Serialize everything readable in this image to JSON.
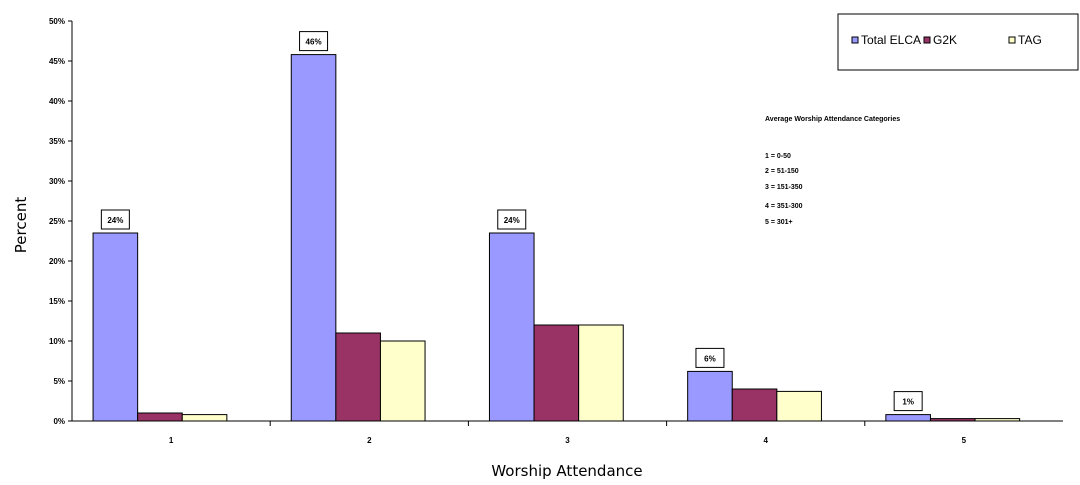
{
  "chart_data": {
    "type": "bar",
    "xlabel": "Worship Attendance",
    "ylabel": "Percent",
    "ylim": [
      0,
      50
    ],
    "yticks": [
      "0%",
      "5%",
      "10%",
      "15%",
      "20%",
      "25%",
      "30%",
      "35%",
      "40%",
      "45%",
      "50%"
    ],
    "categories": [
      "1",
      "2",
      "3",
      "4",
      "5"
    ],
    "series": [
      {
        "name": "Total ELCA",
        "color": "#9999ff",
        "values": [
          23.5,
          45.8,
          23.5,
          6.2,
          0.8
        ],
        "labels": [
          "24%",
          "46%",
          "24%",
          "6%",
          "1%"
        ]
      },
      {
        "name": "G2K",
        "color": "#993366",
        "values": [
          1.0,
          11.0,
          12.0,
          4.0,
          0.3
        ]
      },
      {
        "name": "TAG",
        "color": "#ffffcc",
        "values": [
          0.8,
          10.0,
          12.0,
          3.7,
          0.3
        ]
      }
    ],
    "legend_position": "top-right",
    "annotation": {
      "title": "Average Worship Attendance Categories",
      "lines": [
        "1 = 0-50",
        "2 = 51-150",
        "3 = 151-350",
        "4 = 351-300",
        "5 = 301+"
      ]
    }
  }
}
